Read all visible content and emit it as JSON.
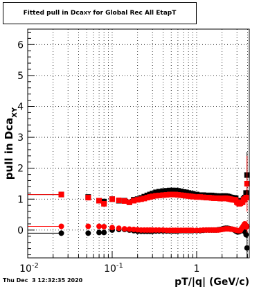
{
  "footer": {
    "timestamp": "Thu Dec  3 12:32:35 2020"
  },
  "chart_data": {
    "type": "scatter",
    "title": {
      "main": "Fitted pull in Dca",
      "subscript": "XY",
      "rest": " for Global Rec All EtapT"
    },
    "xlabel": "pT/|q| (GeV/c)",
    "ylabel": {
      "main": "pull in Dca",
      "subscript": "XY"
    },
    "xscale": "log",
    "xlim": [
      0.01,
      4.2
    ],
    "ylim": [
      -0.9,
      6.5
    ],
    "xticks": [
      {
        "value": 0.01,
        "label": "10",
        "exp": "-2"
      },
      {
        "value": 0.1,
        "label": "10",
        "exp": "-1"
      },
      {
        "value": 1,
        "label": "1",
        "exp": ""
      }
    ],
    "yticks": [
      0,
      1,
      2,
      3,
      4,
      5,
      6
    ],
    "grid": true,
    "colors": {
      "black": "#000000",
      "red": "#ff0000"
    },
    "series": [
      {
        "color": "black",
        "marker": "square",
        "x": [
          0.025,
          0.052,
          0.07,
          0.08,
          0.1,
          0.12,
          0.14,
          0.16,
          0.18,
          0.2,
          0.22,
          0.24,
          0.26,
          0.28,
          0.3,
          0.33,
          0.36,
          0.4,
          0.44,
          0.48,
          0.52,
          0.56,
          0.6,
          0.65,
          0.7,
          0.75,
          0.8,
          0.85,
          0.9,
          1.0,
          1.1,
          1.2,
          1.3,
          1.4,
          1.5,
          1.6,
          1.7,
          1.8,
          1.9,
          2.0,
          2.1,
          2.2,
          2.3,
          2.4,
          2.5,
          2.6,
          2.7,
          2.8,
          2.9,
          3.0,
          3.1,
          3.2,
          3.3,
          3.4,
          3.5,
          3.6,
          3.7,
          3.85,
          3.95
        ],
        "y": [
          1.15,
          1.07,
          0.95,
          0.92,
          1.0,
          0.95,
          0.95,
          0.9,
          0.98,
          1.0,
          1.04,
          1.08,
          1.12,
          1.15,
          1.18,
          1.22,
          1.24,
          1.26,
          1.27,
          1.28,
          1.28,
          1.28,
          1.27,
          1.25,
          1.23,
          1.22,
          1.2,
          1.18,
          1.17,
          1.15,
          1.13,
          1.13,
          1.12,
          1.12,
          1.12,
          1.11,
          1.1,
          1.1,
          1.09,
          1.09,
          1.1,
          1.1,
          1.09,
          1.08,
          1.06,
          1.05,
          1.04,
          1.04,
          1.03,
          0.95,
          0.93,
          0.9,
          0.92,
          0.95,
          0.95,
          1.0,
          1.05,
          1.2,
          1.78
        ],
        "yerr": [
          0.03,
          0.03,
          0.03,
          0.03,
          0.03,
          0.02,
          0.02,
          0.02,
          0.02,
          0.02,
          0.02,
          0.02,
          0.02,
          0.02,
          0.02,
          0.02,
          0.02,
          0.02,
          0.02,
          0.02,
          0.02,
          0.02,
          0.02,
          0.02,
          0.02,
          0.02,
          0.02,
          0.02,
          0.02,
          0.02,
          0.02,
          0.02,
          0.02,
          0.02,
          0.02,
          0.02,
          0.02,
          0.02,
          0.02,
          0.02,
          0.02,
          0.02,
          0.02,
          0.02,
          0.02,
          0.02,
          0.02,
          0.02,
          0.02,
          0.03,
          0.03,
          0.03,
          0.03,
          0.04,
          0.04,
          0.05,
          0.06,
          0.1,
          0.75
        ]
      },
      {
        "color": "red",
        "marker": "square",
        "x": [
          0.025,
          0.052,
          0.07,
          0.08,
          0.1,
          0.12,
          0.14,
          0.16,
          0.18,
          0.2,
          0.22,
          0.24,
          0.26,
          0.28,
          0.3,
          0.33,
          0.36,
          0.4,
          0.44,
          0.48,
          0.52,
          0.56,
          0.6,
          0.65,
          0.7,
          0.75,
          0.8,
          0.85,
          0.9,
          1.0,
          1.1,
          1.2,
          1.3,
          1.4,
          1.5,
          1.6,
          1.7,
          1.8,
          1.9,
          2.0,
          2.1,
          2.2,
          2.3,
          2.4,
          2.5,
          2.6,
          2.7,
          2.8,
          2.9,
          3.0,
          3.1,
          3.2,
          3.3,
          3.4,
          3.5,
          3.6,
          3.7,
          3.85,
          3.95
        ],
        "y": [
          1.15,
          1.05,
          0.95,
          0.85,
          1.0,
          0.96,
          0.94,
          0.9,
          0.95,
          0.98,
          1.0,
          1.02,
          1.05,
          1.07,
          1.09,
          1.11,
          1.12,
          1.13,
          1.14,
          1.15,
          1.15,
          1.15,
          1.14,
          1.13,
          1.12,
          1.11,
          1.1,
          1.09,
          1.08,
          1.07,
          1.07,
          1.06,
          1.05,
          1.05,
          1.04,
          1.03,
          1.03,
          1.03,
          1.02,
          1.02,
          1.03,
          1.03,
          1.02,
          1.01,
          1.0,
          0.99,
          0.98,
          0.98,
          0.97,
          0.9,
          0.88,
          0.85,
          0.87,
          0.9,
          0.9,
          0.98,
          1.0,
          1.05,
          1.5
        ],
        "yerr": [
          0.03,
          0.03,
          0.03,
          0.03,
          0.03,
          0.02,
          0.02,
          0.02,
          0.02,
          0.02,
          0.02,
          0.02,
          0.02,
          0.02,
          0.02,
          0.02,
          0.02,
          0.02,
          0.02,
          0.02,
          0.02,
          0.02,
          0.02,
          0.02,
          0.02,
          0.02,
          0.02,
          0.02,
          0.02,
          0.02,
          0.02,
          0.02,
          0.02,
          0.02,
          0.02,
          0.02,
          0.02,
          0.02,
          0.02,
          0.02,
          0.02,
          0.02,
          0.02,
          0.02,
          0.02,
          0.02,
          0.02,
          0.02,
          0.02,
          0.03,
          0.03,
          0.03,
          0.03,
          0.04,
          0.04,
          0.05,
          0.06,
          0.1,
          0.9
        ]
      },
      {
        "color": "black",
        "marker": "circle",
        "x": [
          0.025,
          0.052,
          0.07,
          0.08,
          0.1,
          0.12,
          0.14,
          0.16,
          0.18,
          0.2,
          0.22,
          0.24,
          0.26,
          0.28,
          0.3,
          0.33,
          0.36,
          0.4,
          0.44,
          0.48,
          0.52,
          0.56,
          0.6,
          0.65,
          0.7,
          0.75,
          0.8,
          0.85,
          0.9,
          1.0,
          1.1,
          1.2,
          1.3,
          1.4,
          1.5,
          1.6,
          1.7,
          1.8,
          1.9,
          2.0,
          2.1,
          2.2,
          2.3,
          2.4,
          2.5,
          2.6,
          2.7,
          2.8,
          2.9,
          3.0,
          3.1,
          3.2,
          3.3,
          3.4,
          3.5,
          3.6,
          3.7,
          3.85,
          3.95
        ],
        "y": [
          -0.1,
          -0.1,
          -0.08,
          -0.08,
          0.0,
          0.02,
          0.02,
          0.0,
          -0.02,
          -0.04,
          -0.04,
          -0.04,
          -0.04,
          -0.04,
          -0.04,
          -0.03,
          -0.03,
          -0.03,
          -0.03,
          -0.03,
          -0.03,
          -0.03,
          -0.03,
          -0.02,
          -0.02,
          -0.02,
          -0.02,
          -0.02,
          -0.02,
          -0.02,
          -0.02,
          -0.01,
          0.0,
          0.0,
          0.0,
          0.0,
          0.0,
          0.01,
          0.02,
          0.03,
          0.05,
          0.06,
          0.06,
          0.05,
          0.04,
          0.03,
          0.02,
          0.0,
          -0.03,
          -0.05,
          -0.06,
          -0.05,
          -0.03,
          0.0,
          0.02,
          0.0,
          -0.05,
          -0.15,
          -0.58
        ],
        "yerr": [
          0.02,
          0.02,
          0.02,
          0.02,
          0.02,
          0.02,
          0.02,
          0.02,
          0.02,
          0.02,
          0.02,
          0.02,
          0.02,
          0.02,
          0.02,
          0.02,
          0.02,
          0.02,
          0.02,
          0.02,
          0.02,
          0.02,
          0.02,
          0.02,
          0.02,
          0.02,
          0.02,
          0.02,
          0.02,
          0.02,
          0.02,
          0.02,
          0.02,
          0.02,
          0.02,
          0.02,
          0.02,
          0.02,
          0.02,
          0.02,
          0.02,
          0.02,
          0.02,
          0.02,
          0.02,
          0.02,
          0.02,
          0.02,
          0.02,
          0.02,
          0.03,
          0.03,
          0.03,
          0.03,
          0.04,
          0.05,
          0.06,
          0.1,
          0.5
        ]
      },
      {
        "color": "red",
        "marker": "circle",
        "x": [
          0.025,
          0.052,
          0.07,
          0.08,
          0.1,
          0.12,
          0.14,
          0.16,
          0.18,
          0.2,
          0.22,
          0.24,
          0.26,
          0.28,
          0.3,
          0.33,
          0.36,
          0.4,
          0.44,
          0.48,
          0.52,
          0.56,
          0.6,
          0.65,
          0.7,
          0.75,
          0.8,
          0.85,
          0.9,
          1.0,
          1.1,
          1.2,
          1.3,
          1.4,
          1.5,
          1.6,
          1.7,
          1.8,
          1.9,
          2.0,
          2.1,
          2.2,
          2.3,
          2.4,
          2.5,
          2.6,
          2.7,
          2.8,
          2.9,
          3.0,
          3.1,
          3.2,
          3.3,
          3.4,
          3.5,
          3.6,
          3.7,
          3.85,
          3.95
        ],
        "y": [
          0.12,
          0.12,
          0.12,
          0.11,
          0.08,
          0.06,
          0.04,
          0.03,
          0.02,
          0.01,
          0.0,
          0.0,
          0.0,
          0.0,
          0.0,
          0.0,
          0.0,
          0.0,
          -0.01,
          -0.01,
          -0.01,
          -0.01,
          -0.01,
          -0.01,
          -0.01,
          -0.01,
          -0.01,
          -0.01,
          -0.01,
          -0.01,
          -0.01,
          0.0,
          0.0,
          0.0,
          0.0,
          0.0,
          0.0,
          0.0,
          0.01,
          0.02,
          0.03,
          0.04,
          0.04,
          0.04,
          0.03,
          0.03,
          0.02,
          0.01,
          0.0,
          -0.01,
          -0.02,
          -0.02,
          -0.01,
          0.05,
          0.1,
          0.15,
          0.2,
          0.1,
          0.12
        ],
        "yerr": [
          0.02,
          0.02,
          0.02,
          0.02,
          0.02,
          0.02,
          0.02,
          0.02,
          0.02,
          0.02,
          0.02,
          0.02,
          0.02,
          0.02,
          0.02,
          0.02,
          0.02,
          0.02,
          0.02,
          0.02,
          0.02,
          0.02,
          0.02,
          0.02,
          0.02,
          0.02,
          0.02,
          0.02,
          0.02,
          0.02,
          0.02,
          0.02,
          0.02,
          0.02,
          0.02,
          0.02,
          0.02,
          0.02,
          0.02,
          0.02,
          0.02,
          0.02,
          0.02,
          0.02,
          0.02,
          0.02,
          0.02,
          0.02,
          0.02,
          0.02,
          0.03,
          0.03,
          0.03,
          0.03,
          0.04,
          0.05,
          0.06,
          0.1,
          0.2
        ]
      }
    ]
  }
}
